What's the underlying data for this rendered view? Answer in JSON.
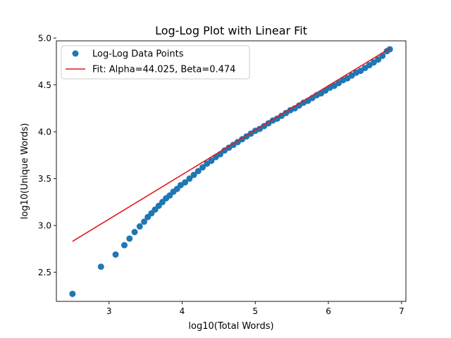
{
  "chart_data": {
    "type": "scatter",
    "title": "Log-Log Plot with Linear Fit",
    "xlabel": "log10(Total Words)",
    "ylabel": "log10(Unique Words)",
    "xlim": [
      2.28,
      7.06
    ],
    "ylim": [
      2.19,
      4.97
    ],
    "xticks": [
      3,
      4,
      5,
      6,
      7
    ],
    "yticks": [
      2.5,
      3.0,
      3.5,
      4.0,
      4.5,
      5.0
    ],
    "xtick_labels": [
      "3",
      "4",
      "5",
      "6",
      "7"
    ],
    "ytick_labels": [
      "2.5",
      "3.0",
      "3.5",
      "4.0",
      "4.5",
      "5.0"
    ],
    "grid": false,
    "legend_position": "upper-left",
    "series": [
      {
        "name": "Log-Log Data Points",
        "kind": "scatter",
        "color": "#1f77b4",
        "points": [
          [
            2.5,
            2.27
          ],
          [
            2.89,
            2.56
          ],
          [
            3.09,
            2.69
          ],
          [
            3.21,
            2.79
          ],
          [
            3.28,
            2.86
          ],
          [
            3.35,
            2.93
          ],
          [
            3.42,
            2.99
          ],
          [
            3.48,
            3.04
          ],
          [
            3.53,
            3.09
          ],
          [
            3.58,
            3.13
          ],
          [
            3.63,
            3.17
          ],
          [
            3.68,
            3.21
          ],
          [
            3.73,
            3.25
          ],
          [
            3.78,
            3.29
          ],
          [
            3.83,
            3.32
          ],
          [
            3.88,
            3.36
          ],
          [
            3.93,
            3.39
          ],
          [
            3.98,
            3.43
          ],
          [
            4.04,
            3.46
          ],
          [
            4.1,
            3.5
          ],
          [
            4.16,
            3.54
          ],
          [
            4.22,
            3.58
          ],
          [
            4.28,
            3.62
          ],
          [
            4.34,
            3.66
          ],
          [
            4.4,
            3.69
          ],
          [
            4.46,
            3.73
          ],
          [
            4.52,
            3.76
          ],
          [
            4.58,
            3.8
          ],
          [
            4.64,
            3.83
          ],
          [
            4.7,
            3.86
          ],
          [
            4.76,
            3.89
          ],
          [
            4.82,
            3.92
          ],
          [
            4.88,
            3.95
          ],
          [
            4.94,
            3.98
          ],
          [
            5.0,
            4.01
          ],
          [
            5.06,
            4.03
          ],
          [
            5.12,
            4.06
          ],
          [
            5.18,
            4.09
          ],
          [
            5.24,
            4.12
          ],
          [
            5.3,
            4.14
          ],
          [
            5.36,
            4.17
          ],
          [
            5.42,
            4.2
          ],
          [
            5.48,
            4.23
          ],
          [
            5.54,
            4.25
          ],
          [
            5.6,
            4.28
          ],
          [
            5.66,
            4.31
          ],
          [
            5.72,
            4.33
          ],
          [
            5.78,
            4.36
          ],
          [
            5.84,
            4.39
          ],
          [
            5.9,
            4.41
          ],
          [
            5.96,
            4.44
          ],
          [
            6.02,
            4.47
          ],
          [
            6.08,
            4.49
          ],
          [
            6.14,
            4.52
          ],
          [
            6.2,
            4.55
          ],
          [
            6.26,
            4.57
          ],
          [
            6.32,
            4.6
          ],
          [
            6.38,
            4.63
          ],
          [
            6.44,
            4.65
          ],
          [
            6.5,
            4.68
          ],
          [
            6.56,
            4.71
          ],
          [
            6.62,
            4.74
          ],
          [
            6.68,
            4.77
          ],
          [
            6.74,
            4.81
          ],
          [
            6.8,
            4.86
          ],
          [
            6.84,
            4.88
          ]
        ]
      },
      {
        "name": "Fit: Alpha=44.025, Beta=0.474",
        "kind": "line",
        "color": "#e31a1c",
        "points": [
          [
            2.5,
            2.83
          ],
          [
            6.84,
            4.89
          ]
        ]
      }
    ]
  }
}
